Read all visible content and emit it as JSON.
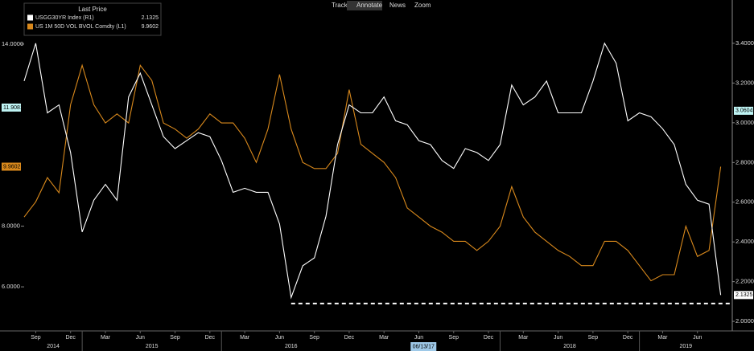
{
  "toolbar": [
    "Track",
    "Annotate",
    "News",
    "Zoom"
  ],
  "chart_data": {
    "type": "line",
    "legend_title": "Last Price",
    "x": [
      "2014-08",
      "2014-09",
      "2014-10",
      "2014-11",
      "2014-12",
      "2015-01",
      "2015-02",
      "2015-03",
      "2015-04",
      "2015-05",
      "2015-06",
      "2015-07",
      "2015-08",
      "2015-09",
      "2015-10",
      "2015-11",
      "2015-12",
      "2016-01",
      "2016-02",
      "2016-03",
      "2016-04",
      "2016-05",
      "2016-06",
      "2016-07",
      "2016-08",
      "2016-09",
      "2016-10",
      "2016-11",
      "2016-12",
      "2017-01",
      "2017-02",
      "2017-03",
      "2017-04",
      "2017-05",
      "2017-06",
      "2017-07",
      "2017-08",
      "2017-09",
      "2017-10",
      "2017-11",
      "2017-12",
      "2018-01",
      "2018-02",
      "2018-03",
      "2018-04",
      "2018-05",
      "2018-06",
      "2018-07",
      "2018-08",
      "2018-09",
      "2018-10",
      "2018-11",
      "2018-12",
      "2019-01",
      "2019-02",
      "2019-03",
      "2019-04",
      "2019-05",
      "2019-06",
      "2019-07",
      "2019-08"
    ],
    "series": [
      {
        "name": "USGG30YR Index (R1)",
        "color": "#ffffff",
        "axis": "y2",
        "last_value": 2.1325,
        "values": [
          3.21,
          3.4,
          3.05,
          3.09,
          2.85,
          2.45,
          2.61,
          2.69,
          2.61,
          3.13,
          3.25,
          3.09,
          2.93,
          2.87,
          2.91,
          2.95,
          2.93,
          2.81,
          2.65,
          2.67,
          2.65,
          2.65,
          2.49,
          2.12,
          2.28,
          2.32,
          2.53,
          2.89,
          3.09,
          3.05,
          3.05,
          3.13,
          3.01,
          2.99,
          2.91,
          2.89,
          2.81,
          2.77,
          2.87,
          2.85,
          2.81,
          2.89,
          3.19,
          3.09,
          3.13,
          3.21,
          3.05,
          3.05,
          3.05,
          3.21,
          3.4,
          3.3,
          3.01,
          3.05,
          3.03,
          2.97,
          2.89,
          2.69,
          2.61,
          2.59,
          2.1325
        ]
      },
      {
        "name": "US 1M 50D VOL BVOL Comdty (L1)",
        "color": "#d9891c",
        "axis": "y",
        "last_value": 9.9602,
        "values": [
          8.3,
          8.8,
          9.6,
          9.1,
          12.0,
          13.3,
          12.0,
          11.4,
          11.7,
          11.4,
          13.3,
          12.8,
          11.4,
          11.2,
          10.9,
          11.2,
          11.7,
          11.4,
          11.4,
          10.9,
          10.1,
          11.2,
          13.0,
          11.2,
          10.1,
          9.9,
          9.9,
          10.4,
          12.5,
          10.7,
          10.4,
          10.1,
          9.6,
          8.6,
          8.3,
          8.0,
          7.8,
          7.5,
          7.5,
          7.2,
          7.5,
          8.0,
          9.3,
          8.3,
          7.8,
          7.5,
          7.2,
          7.0,
          6.7,
          6.7,
          7.5,
          7.5,
          7.2,
          6.7,
          6.2,
          6.4,
          6.4,
          8.0,
          7.0,
          7.2,
          9.9602
        ]
      }
    ],
    "xlim": [
      "2014-08",
      "2019-09"
    ],
    "xticks": [
      {
        "value": "2014-09",
        "label": "Sep"
      },
      {
        "value": "2014-12",
        "label": "Dec"
      },
      {
        "value": "2015-03",
        "label": "Mar"
      },
      {
        "value": "2015-06",
        "label": "Jun"
      },
      {
        "value": "2015-09",
        "label": "Sep"
      },
      {
        "value": "2015-12",
        "label": "Dec"
      },
      {
        "value": "2016-03",
        "label": "Mar"
      },
      {
        "value": "2016-06",
        "label": "Jun"
      },
      {
        "value": "2016-09",
        "label": "Sep"
      },
      {
        "value": "2016-12",
        "label": "Dec"
      },
      {
        "value": "2017-03",
        "label": "Mar"
      },
      {
        "value": "2017-06",
        "label": "Jun"
      },
      {
        "value": "2017-09",
        "label": "Sep"
      },
      {
        "value": "2017-12",
        "label": "Dec"
      },
      {
        "value": "2018-03",
        "label": "Mar"
      },
      {
        "value": "2018-06",
        "label": "Jun"
      },
      {
        "value": "2018-09",
        "label": "Sep"
      },
      {
        "value": "2018-12",
        "label": "Dec"
      },
      {
        "value": "2019-03",
        "label": "Mar"
      },
      {
        "value": "2019-06",
        "label": "Jun"
      }
    ],
    "xyears": [
      "2014",
      "2015",
      "2016",
      "2018",
      "2019"
    ],
    "cursor_date": {
      "value": "2017-06-13",
      "label": "06/13/17"
    },
    "ylim": [
      4.6,
      15.4
    ],
    "yticks": [
      {
        "value": 6,
        "label": "6.0000"
      },
      {
        "value": 8,
        "label": "8.0000"
      },
      {
        "value": 14,
        "label": "14.0000"
      }
    ],
    "y2lim": [
      1.96,
      3.61
    ],
    "y2ticks": [
      {
        "value": 2,
        "label": "2.0000"
      },
      {
        "value": 2.2,
        "label": "2.2000"
      },
      {
        "value": 2.4,
        "label": "2.4000"
      },
      {
        "value": 2.6,
        "label": "2.6000"
      },
      {
        "value": 2.8,
        "label": "2.8000"
      },
      {
        "value": 3,
        "label": "3.0000"
      },
      {
        "value": 3.2,
        "label": "3.2000"
      },
      {
        "value": 3.4,
        "label": "3.4000"
      }
    ],
    "tags": [
      {
        "value": 11.9081,
        "label": "11.9081",
        "axis": "y"
      },
      {
        "value": 3.0604,
        "label": "3.0604",
        "axis": "y2"
      }
    ],
    "reference_line": {
      "value": 2.09,
      "axis": "y2",
      "from": "2016-07"
    }
  }
}
